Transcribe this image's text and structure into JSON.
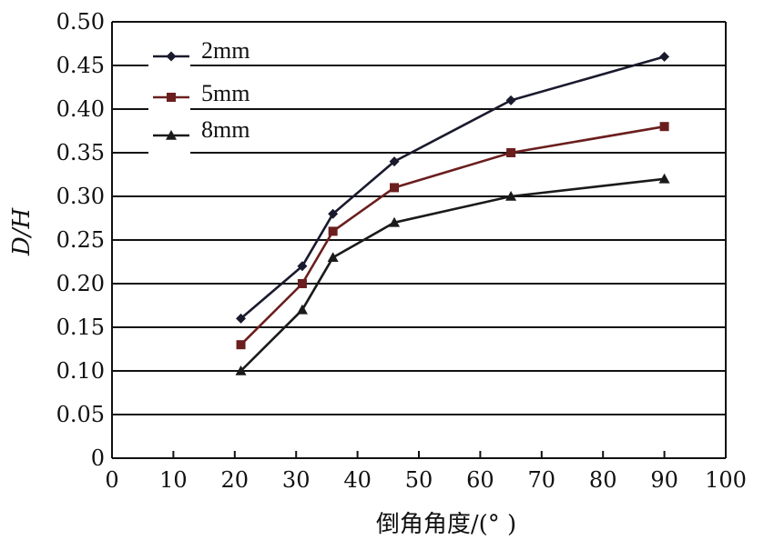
{
  "chart_data": {
    "type": "line",
    "title": "",
    "xlabel": "倒角角度/(°  )",
    "ylabel": "D/H",
    "xlim": [
      0,
      100
    ],
    "ylim": [
      0,
      0.5
    ],
    "xticks": [
      "0",
      "10",
      "20",
      "30",
      "40",
      "50",
      "60",
      "70",
      "80",
      "90",
      "100"
    ],
    "yticks": [
      "0",
      "0.05",
      "0.10",
      "0.15",
      "0.20",
      "0.25",
      "0.30",
      "0.35",
      "0.40",
      "0.45",
      "0.50"
    ],
    "x": [
      21,
      31,
      36,
      46,
      65,
      90
    ],
    "grid": "horizontal",
    "legend_position": "top-left",
    "series": [
      {
        "name": "2mm",
        "marker": "diamond",
        "color": "#1a1a2e",
        "values": [
          0.16,
          0.22,
          0.28,
          0.34,
          0.41,
          0.46
        ]
      },
      {
        "name": "5mm",
        "marker": "square",
        "color": "#6b1e1e",
        "values": [
          0.13,
          0.2,
          0.26,
          0.31,
          0.35,
          0.38
        ]
      },
      {
        "name": "8mm",
        "marker": "triangle",
        "color": "#1a1a1a",
        "values": [
          0.1,
          0.17,
          0.23,
          0.27,
          0.3,
          0.32
        ]
      }
    ]
  }
}
